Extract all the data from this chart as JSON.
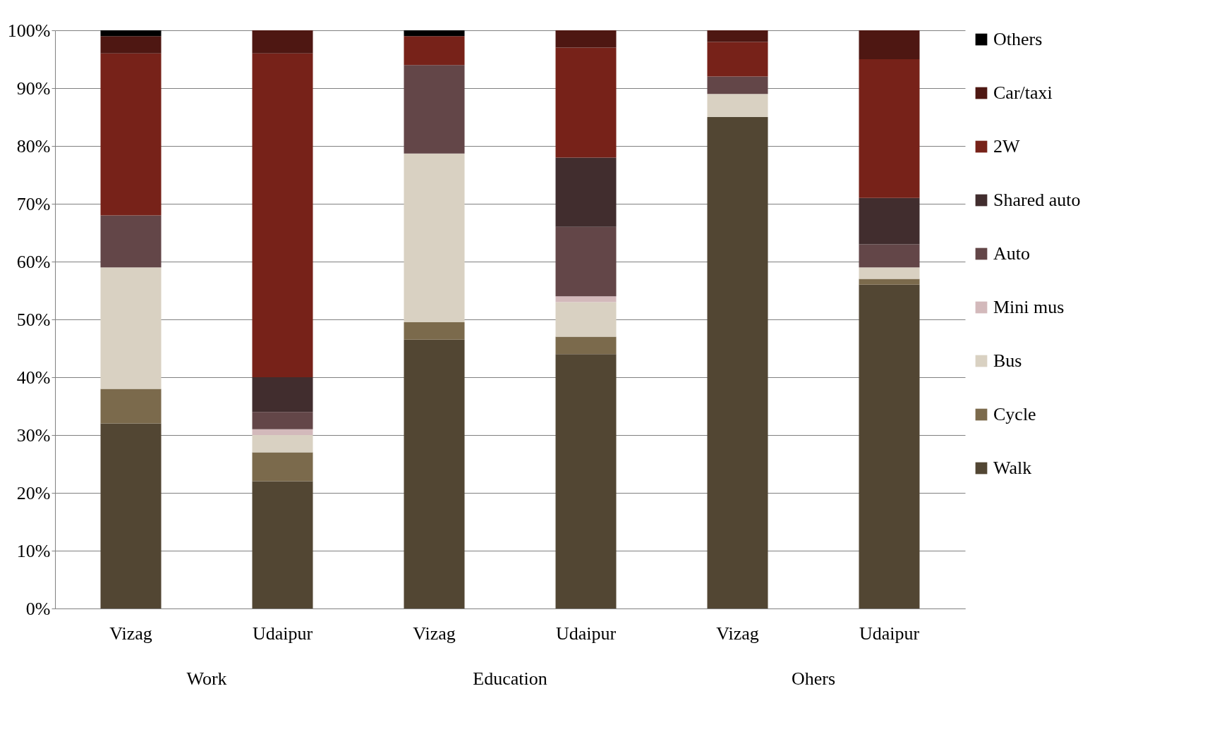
{
  "chart_data": {
    "type": "bar",
    "stacked": true,
    "categories": [
      "Vizag",
      "Udaipur",
      "Vizag",
      "Udaipur",
      "Vizag",
      "Udaipur"
    ],
    "annotations": [
      "Work",
      "Education",
      "Ohers"
    ],
    "series": [
      {
        "name": "Walk",
        "color": "#524633",
        "values": [
          32,
          22,
          46.5,
          44,
          85,
          56
        ]
      },
      {
        "name": "Cycle",
        "color": "#7b6a4c",
        "values": [
          6,
          5,
          3,
          3,
          null,
          1
        ]
      },
      {
        "name": "Bus",
        "color": "#d9d1c2",
        "values": [
          21,
          3,
          29.2,
          6,
          4,
          2
        ]
      },
      {
        "name": "Mini mus",
        "color": "#d3b9bb",
        "values": [
          null,
          1,
          null,
          1,
          null,
          null
        ]
      },
      {
        "name": "Auto",
        "color": "#634648",
        "values": [
          9,
          3,
          15.3,
          12,
          3,
          4
        ]
      },
      {
        "name": "Shared auto",
        "color": "#412d2e",
        "values": [
          null,
          6,
          null,
          12,
          null,
          8
        ]
      },
      {
        "name": "2W",
        "color": "#772219",
        "values": [
          28,
          56,
          5,
          19,
          6,
          24
        ]
      },
      {
        "name": "Car/taxi",
        "color": "#4e1712",
        "values": [
          3,
          4,
          null,
          3,
          2,
          5
        ]
      },
      {
        "name": "Others",
        "color": "#000000",
        "values": [
          1,
          null,
          1,
          null,
          null,
          null
        ]
      }
    ],
    "ylim": [
      0,
      100
    ],
    "yticks": [
      {
        "value": 0,
        "label": "0%"
      },
      {
        "value": 10,
        "label": "10%"
      },
      {
        "value": 20,
        "label": "20%"
      },
      {
        "value": 30,
        "label": "30%"
      },
      {
        "value": 40,
        "label": "40%"
      },
      {
        "value": 50,
        "label": "50%"
      },
      {
        "value": 60,
        "label": "60%"
      },
      {
        "value": 70,
        "label": "70%"
      },
      {
        "value": 80,
        "label": "80%"
      },
      {
        "value": 90,
        "label": "90%"
      },
      {
        "value": 100,
        "label": "100%"
      }
    ],
    "grid": "y",
    "legend": "right"
  }
}
